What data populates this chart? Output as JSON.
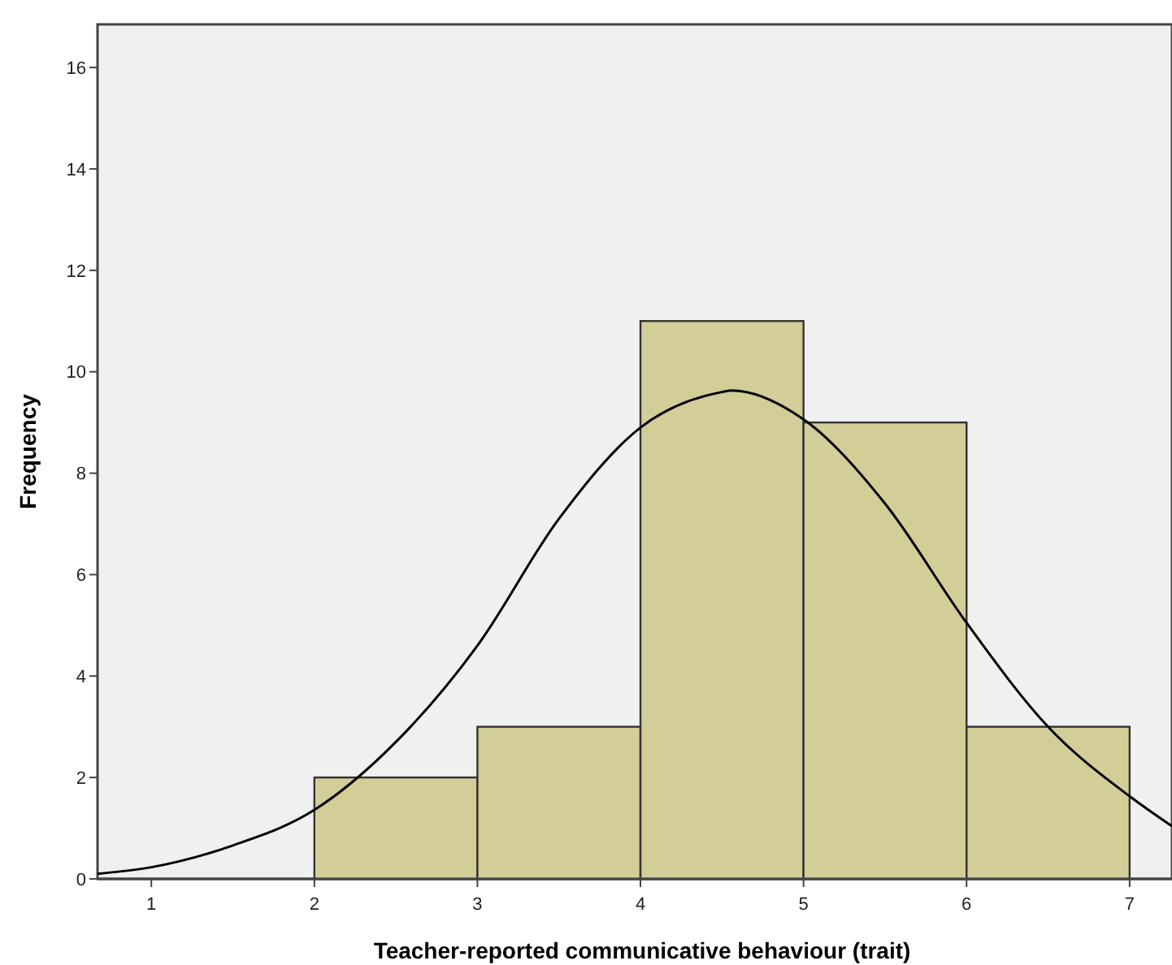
{
  "chart_data": {
    "type": "histogram",
    "xlabel": "Teacher-reported communicative behaviour (trait)",
    "ylabel": "Frequency",
    "bins": [
      2,
      3,
      4,
      5,
      6,
      7
    ],
    "values": [
      2,
      3,
      11,
      9,
      3
    ],
    "color": "#d3ce98",
    "series": [
      {
        "type": "line",
        "color": "#000000",
        "x": [
          0.67,
          1,
          1.5,
          2,
          2.5,
          3,
          3.5,
          4,
          4.5,
          4.56,
          5,
          5.5,
          6,
          6.5,
          7,
          7.26
        ],
        "values": [
          0.1,
          0.23,
          0.66,
          1.36,
          2.7,
          4.6,
          7.1,
          8.9,
          9.6,
          9.63,
          9.06,
          7.4,
          5.05,
          3.0,
          1.63,
          1.04
        ]
      }
    ],
    "xlim": [
      0.67,
      7.26
    ],
    "xticks": [
      1,
      2,
      3,
      4,
      5,
      6,
      7
    ],
    "ylim": [
      0,
      16.85
    ],
    "yticks": [
      0,
      2,
      4,
      6,
      8,
      10,
      12,
      14,
      16
    ],
    "grid": false,
    "marker": "none",
    "line_style": "solid"
  }
}
